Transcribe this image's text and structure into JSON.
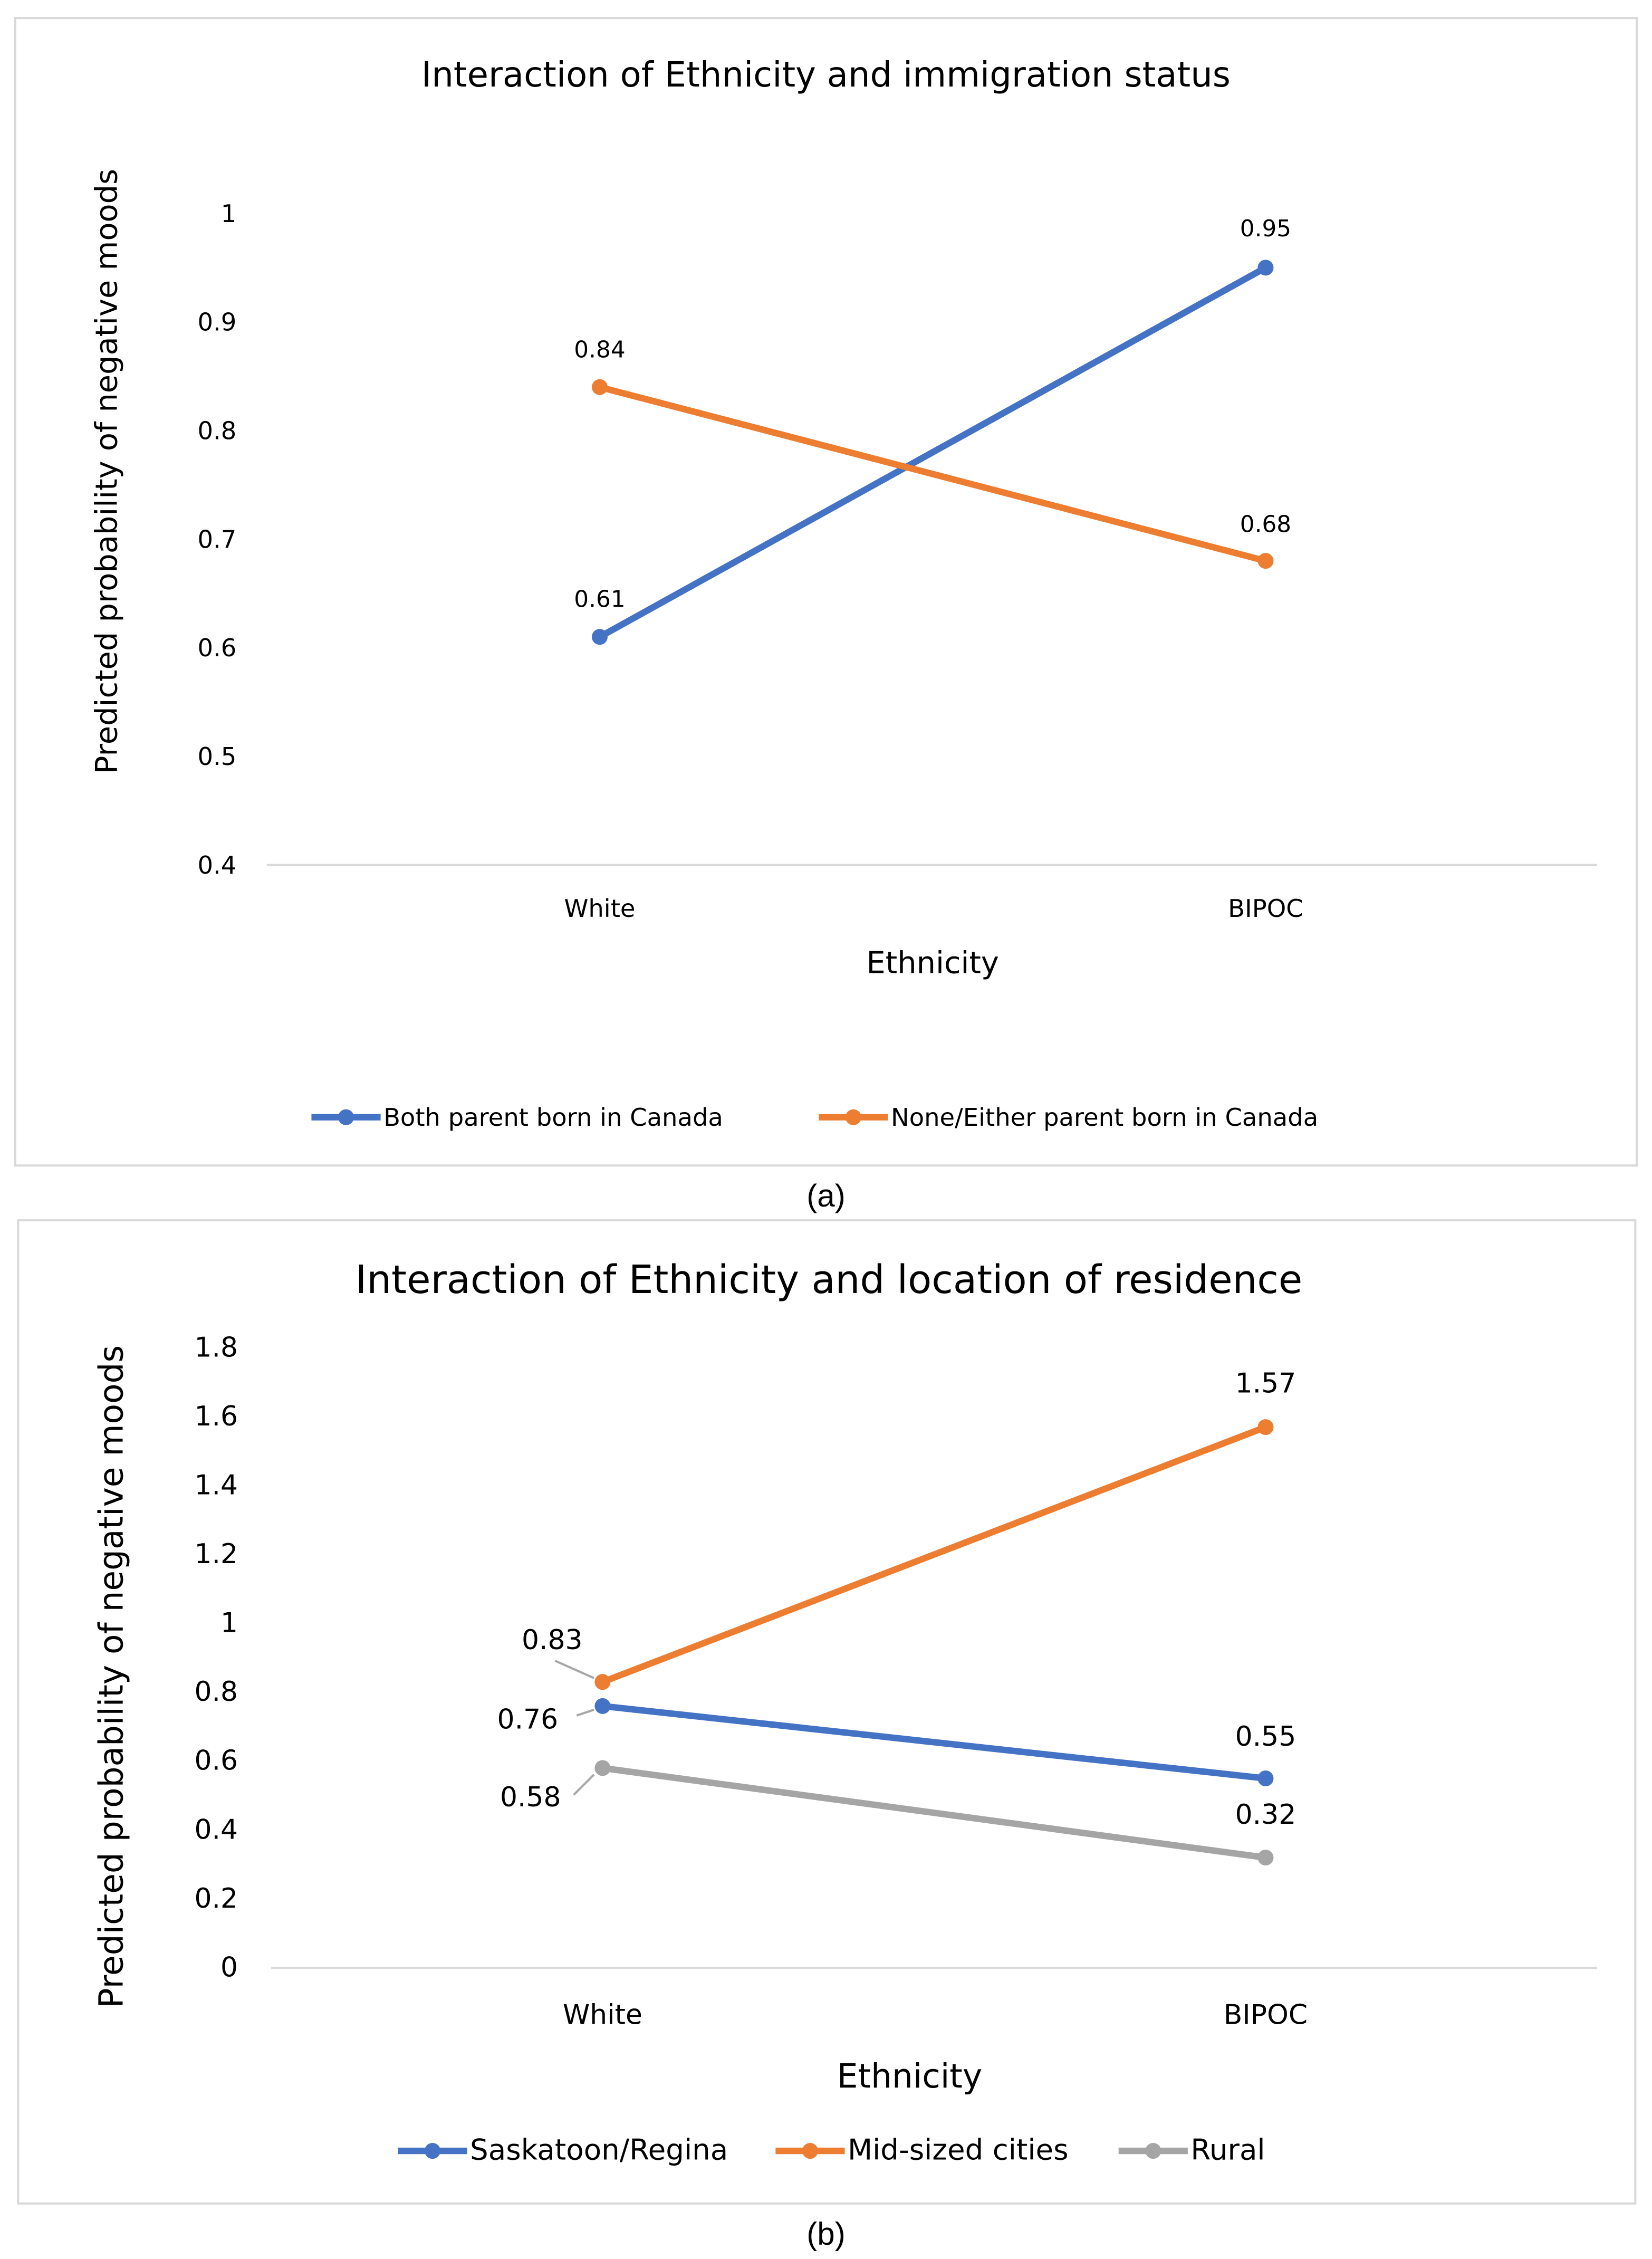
{
  "colors": {
    "blue": "#4472C4",
    "orange": "#ED7D31",
    "gray": "#A5A5A5"
  },
  "chart_data": [
    {
      "type": "line",
      "caption": "(a)",
      "title": "Interaction of Ethnicity and immigration status",
      "xlabel": "Ethnicity",
      "ylabel": "Predicted probability of negative moods",
      "categories": [
        "White",
        "BIPOC"
      ],
      "ylim": [
        0.4,
        1
      ],
      "yticks": [
        "0.4",
        "0.5",
        "0.6",
        "0.7",
        "0.8",
        "0.9",
        "1"
      ],
      "ytick_values": [
        0.4,
        0.5,
        0.6,
        0.7,
        0.8,
        0.9,
        1
      ],
      "grid": false,
      "legend_position": "bottom",
      "series": [
        {
          "name": "Both parent born in Canada",
          "color": "#4472C4",
          "values": [
            0.61,
            0.95
          ],
          "labels": [
            "0.61",
            "0.95"
          ]
        },
        {
          "name": "None/Either parent born in Canada",
          "color": "#ED7D31",
          "values": [
            0.84,
            0.68
          ],
          "labels": [
            "0.84",
            "0.68"
          ]
        }
      ]
    },
    {
      "type": "line",
      "caption": "(b)",
      "title": "Interaction of Ethnicity and location of residence",
      "xlabel": "Ethnicity",
      "ylabel": "Predicted probability of negative moods",
      "categories": [
        "White",
        "BIPOC"
      ],
      "ylim": [
        0,
        1.8
      ],
      "yticks": [
        "0",
        "0.2",
        "0.4",
        "0.6",
        "0.8",
        "1",
        "1.2",
        "1.4",
        "1.6",
        "1.8"
      ],
      "ytick_values": [
        0,
        0.2,
        0.4,
        0.6,
        0.8,
        1,
        1.2,
        1.4,
        1.6,
        1.8
      ],
      "grid": false,
      "legend_position": "bottom",
      "series": [
        {
          "name": "Saskatoon/Regina",
          "color": "#4472C4",
          "values": [
            0.76,
            0.55
          ],
          "labels": [
            "0.76",
            "0.55"
          ]
        },
        {
          "name": "Mid-sized cities",
          "color": "#ED7D31",
          "values": [
            0.83,
            1.57
          ],
          "labels": [
            "0.83",
            "1.57"
          ]
        },
        {
          "name": "Rural",
          "color": "#A5A5A5",
          "values": [
            0.58,
            0.32
          ],
          "labels": [
            "0.58",
            "0.32"
          ]
        }
      ]
    }
  ]
}
